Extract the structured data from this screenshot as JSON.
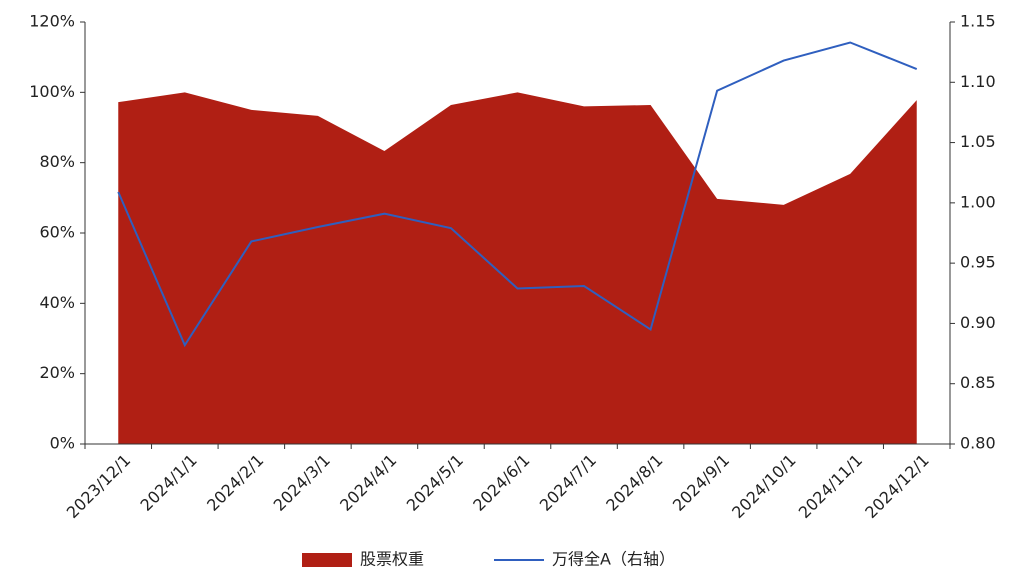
{
  "chart_data": {
    "type": "area",
    "categories": [
      "2023/12/1",
      "2024/1/1",
      "2024/2/1",
      "2024/3/1",
      "2024/4/1",
      "2024/5/1",
      "2024/6/1",
      "2024/7/1",
      "2024/8/1",
      "2024/9/1",
      "2024/10/1",
      "2024/11/1",
      "2024/12/1"
    ],
    "series": [
      {
        "name": "股票权重",
        "type": "area",
        "color": "#b01f14",
        "values": [
          97.2,
          100,
          95,
          93.3,
          83.3,
          96.4,
          100,
          96,
          96.4,
          69.7,
          68,
          76.8,
          97.8
        ]
      },
      {
        "name": "万得全A（右轴）",
        "type": "line",
        "axis": "y2",
        "color": "#2f5fbf",
        "values": [
          1.009,
          0.882,
          0.968,
          0.98,
          0.991,
          0.979,
          0.929,
          0.931,
          0.895,
          1.093,
          1.118,
          1.133,
          1.111
        ]
      }
    ],
    "ylim": [
      0,
      120
    ],
    "yticks": [
      {
        "value": 0,
        "label": "0%"
      },
      {
        "value": 20,
        "label": "20%"
      },
      {
        "value": 40,
        "label": "40%"
      },
      {
        "value": 60,
        "label": "60%"
      },
      {
        "value": 80,
        "label": "80%"
      },
      {
        "value": 100,
        "label": "100%"
      },
      {
        "value": 120,
        "label": "120%"
      }
    ],
    "y2lim": [
      0.8,
      1.15
    ],
    "y2ticks": [
      {
        "value": 0.8,
        "label": "0.80"
      },
      0.85,
      {
        "value": 0.9,
        "label": "0.90"
      },
      0.95,
      {
        "value": 1.0,
        "label": "1.00"
      },
      1.05,
      {
        "value": 1.1,
        "label": "1.10"
      },
      1.15
    ],
    "legend": "bottom"
  }
}
